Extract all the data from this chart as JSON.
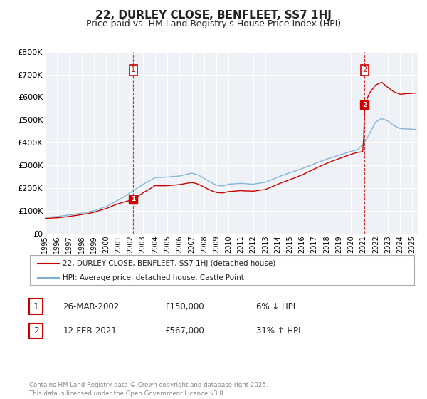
{
  "title": "22, DURLEY CLOSE, BENFLEET, SS7 1HJ",
  "subtitle": "Price paid vs. HM Land Registry's House Price Index (HPI)",
  "title_fontsize": 11,
  "subtitle_fontsize": 9,
  "ylim": [
    0,
    800000
  ],
  "yticks": [
    0,
    100000,
    200000,
    300000,
    400000,
    500000,
    600000,
    700000,
    800000
  ],
  "ytick_labels": [
    "£0",
    "£100K",
    "£200K",
    "£300K",
    "£400K",
    "£500K",
    "£600K",
    "£700K",
    "£800K"
  ],
  "background_color": "#ffffff",
  "plot_bg_color": "#eef2f7",
  "grid_color": "#ffffff",
  "line1_color": "#cc0000",
  "line2_color": "#7ab0d4",
  "transaction1_x": 2002.23,
  "transaction1_y": 150000,
  "transaction1_label": "1",
  "transaction2_x": 2021.1,
  "transaction2_y": 567000,
  "transaction2_label": "2",
  "vline_color": "#cc0000",
  "marker_box_color": "#cc0000",
  "legend_line1": "22, DURLEY CLOSE, BENFLEET, SS7 1HJ (detached house)",
  "legend_line2": "HPI: Average price, detached house, Castle Point",
  "table_rows": [
    {
      "num": "1",
      "date": "26-MAR-2002",
      "price": "£150,000",
      "hpi": "6% ↓ HPI"
    },
    {
      "num": "2",
      "date": "12-FEB-2021",
      "price": "£567,000",
      "hpi": "31% ↑ HPI"
    }
  ],
  "footer": "Contains HM Land Registry data © Crown copyright and database right 2025.\nThis data is licensed under the Open Government Licence v3.0.",
  "xmin": 1995,
  "xmax": 2025.5
}
